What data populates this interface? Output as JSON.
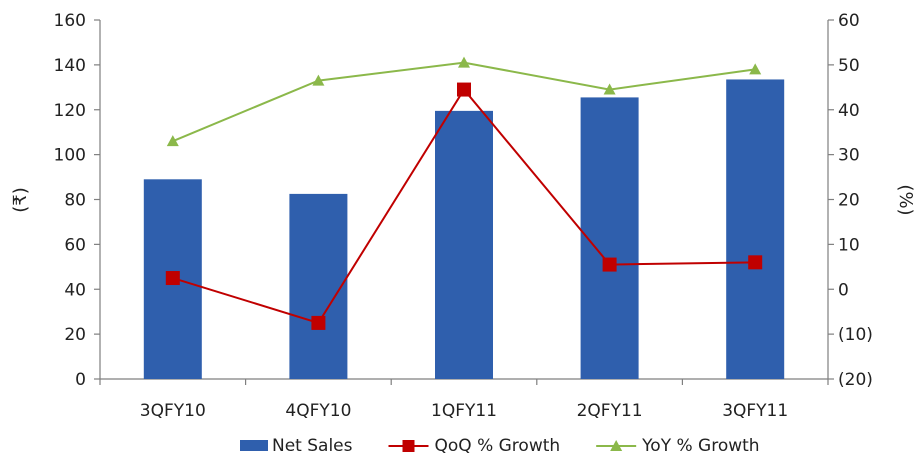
{
  "chart_data": {
    "type": "bar",
    "categories": [
      "3QFY10",
      "4QFY10",
      "1QFY11",
      "2QFY11",
      "3QFY11"
    ],
    "y_left_label": "(₹)",
    "y_right_label": "(%)",
    "y_left_range": [
      0,
      160
    ],
    "y_left_ticks": [
      "0",
      "20",
      "40",
      "60",
      "80",
      "100",
      "120",
      "140",
      "160"
    ],
    "y_right_range": [
      -20,
      60
    ],
    "y_right_ticks": [
      "(20)",
      "(10)",
      "0",
      "10",
      "20",
      "30",
      "40",
      "50",
      "60"
    ],
    "grid": false,
    "legend_position": "bottom",
    "series": [
      {
        "name": "Net Sales",
        "type": "bar",
        "axis": "left",
        "color": "#2F5FAD",
        "values": [
          89,
          82.5,
          119.5,
          125.5,
          133.5
        ]
      },
      {
        "name": "QoQ % Growth",
        "type": "line",
        "axis": "right",
        "marker": "square",
        "color": "#C00000",
        "values": [
          2.5,
          -7.5,
          44.5,
          5.5,
          6.0
        ]
      },
      {
        "name": "YoY % Growth",
        "type": "line",
        "axis": "right",
        "marker": "triangle",
        "color": "#8BB84A",
        "values": [
          33,
          46.5,
          50.5,
          44.5,
          49.0
        ]
      }
    ]
  }
}
